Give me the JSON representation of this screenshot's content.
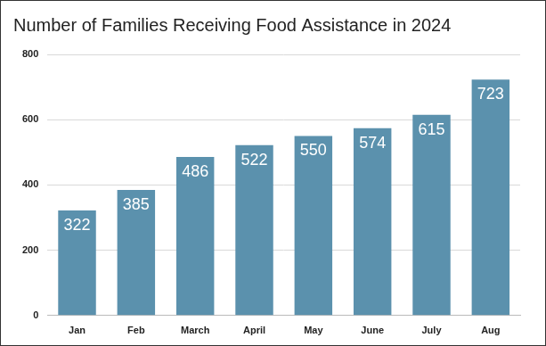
{
  "chart_data": {
    "type": "bar",
    "title": "Number of Families Receiving Food Assistance in 2024",
    "categories": [
      "Jan",
      "Feb",
      "March",
      "April",
      "May",
      "June",
      "July",
      "Aug"
    ],
    "values": [
      322,
      385,
      486,
      522,
      550,
      574,
      615,
      723
    ],
    "color": "#5b91ad",
    "ylim": [
      0,
      800
    ],
    "yticks": [
      0,
      200,
      400,
      600,
      800
    ],
    "grid": true,
    "data_labels": true
  }
}
